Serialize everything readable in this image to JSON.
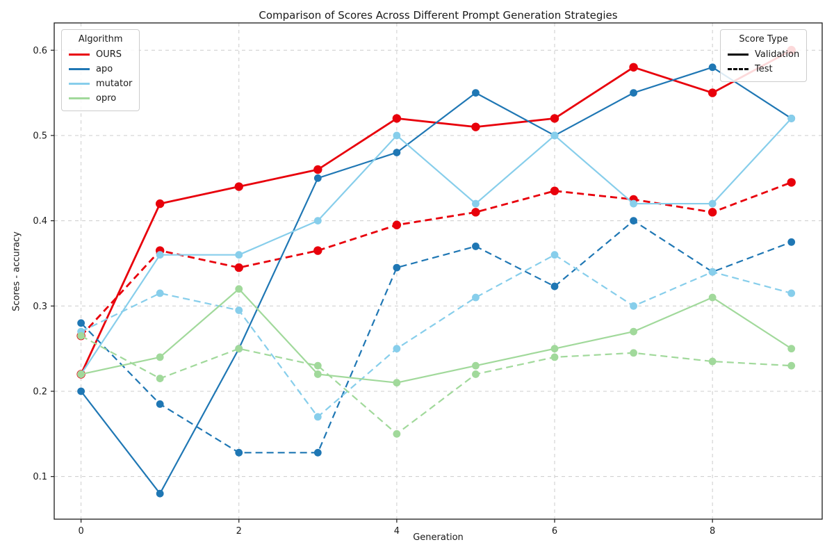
{
  "title": "Comparison of Scores Across Different Prompt Generation Strategies",
  "legends": {
    "algorithm": {
      "title": "Algorithm",
      "items": [
        {
          "label": "OURS",
          "color": "#e8000b",
          "style": "solid"
        },
        {
          "label": "apo",
          "color": "#1f77b4",
          "style": "solid"
        },
        {
          "label": "mutator",
          "color": "#87ceeb",
          "style": "solid"
        },
        {
          "label": "opro",
          "color": "#a1d99b",
          "style": "solid"
        }
      ]
    },
    "score_type": {
      "title": "Score Type",
      "items": [
        {
          "label": "Validation",
          "color": "#000000",
          "style": "solid"
        },
        {
          "label": "Test",
          "color": "#000000",
          "style": "dashed"
        }
      ]
    }
  },
  "chart_data": {
    "type": "line",
    "title": "Comparison of Scores Across Different Prompt Generation Strategies",
    "xlabel": "Generation",
    "ylabel": "Scores - accuracy",
    "x": [
      0,
      1,
      2,
      3,
      4,
      5,
      6,
      7,
      8,
      9
    ],
    "xticks": [
      0,
      2,
      4,
      6,
      8
    ],
    "yticks": [
      0.1,
      0.2,
      0.3,
      0.4,
      0.5,
      0.6
    ],
    "xlim": [
      -0.34,
      9.39
    ],
    "ylim": [
      0.05,
      0.632
    ],
    "grid": true,
    "grid_color": "#cccccc",
    "legend_positions": {
      "algorithm": "upper left",
      "score_type": "upper right"
    },
    "series": [
      {
        "name": "OURS validation",
        "algorithm": "OURS",
        "score_type": "Validation",
        "color": "#e8000b",
        "line_style": "solid",
        "values": [
          0.22,
          0.42,
          0.44,
          0.46,
          0.52,
          0.51,
          0.52,
          0.58,
          0.55,
          0.6
        ]
      },
      {
        "name": "OURS test",
        "algorithm": "OURS",
        "score_type": "Test",
        "color": "#e8000b",
        "line_style": "dashed",
        "values": [
          0.265,
          0.365,
          0.345,
          0.365,
          0.395,
          0.41,
          0.435,
          0.425,
          0.41,
          0.445
        ]
      },
      {
        "name": "apo validation",
        "algorithm": "apo",
        "score_type": "Validation",
        "color": "#1f77b4",
        "line_style": "solid",
        "values": [
          0.2,
          0.08,
          0.25,
          0.45,
          0.48,
          0.55,
          0.5,
          0.55,
          0.58,
          0.52
        ]
      },
      {
        "name": "apo test",
        "algorithm": "apo",
        "score_type": "Test",
        "color": "#1f77b4",
        "line_style": "dashed",
        "values": [
          0.28,
          0.185,
          0.128,
          0.128,
          0.345,
          0.37,
          0.323,
          0.4,
          0.34,
          0.375
        ]
      },
      {
        "name": "mutator validation",
        "algorithm": "mutator",
        "score_type": "Validation",
        "color": "#87ceeb",
        "line_style": "solid",
        "values": [
          0.22,
          0.36,
          0.36,
          0.4,
          0.5,
          0.42,
          0.5,
          0.42,
          0.42,
          0.52
        ]
      },
      {
        "name": "mutator test",
        "algorithm": "mutator",
        "score_type": "Test",
        "color": "#87ceeb",
        "line_style": "dashed",
        "values": [
          0.27,
          0.315,
          0.295,
          0.17,
          0.25,
          0.31,
          0.36,
          0.3,
          0.34,
          0.315
        ]
      },
      {
        "name": "opro validation",
        "algorithm": "opro",
        "score_type": "Validation",
        "color": "#a1d99b",
        "line_style": "solid",
        "values": [
          0.22,
          0.24,
          0.32,
          0.22,
          0.21,
          0.23,
          0.25,
          0.27,
          0.31,
          0.25
        ]
      },
      {
        "name": "opro test",
        "algorithm": "opro",
        "score_type": "Test",
        "color": "#a1d99b",
        "line_style": "dashed",
        "values": [
          0.265,
          0.215,
          0.25,
          0.23,
          0.15,
          0.22,
          0.24,
          0.245,
          0.235,
          0.23
        ]
      }
    ]
  }
}
